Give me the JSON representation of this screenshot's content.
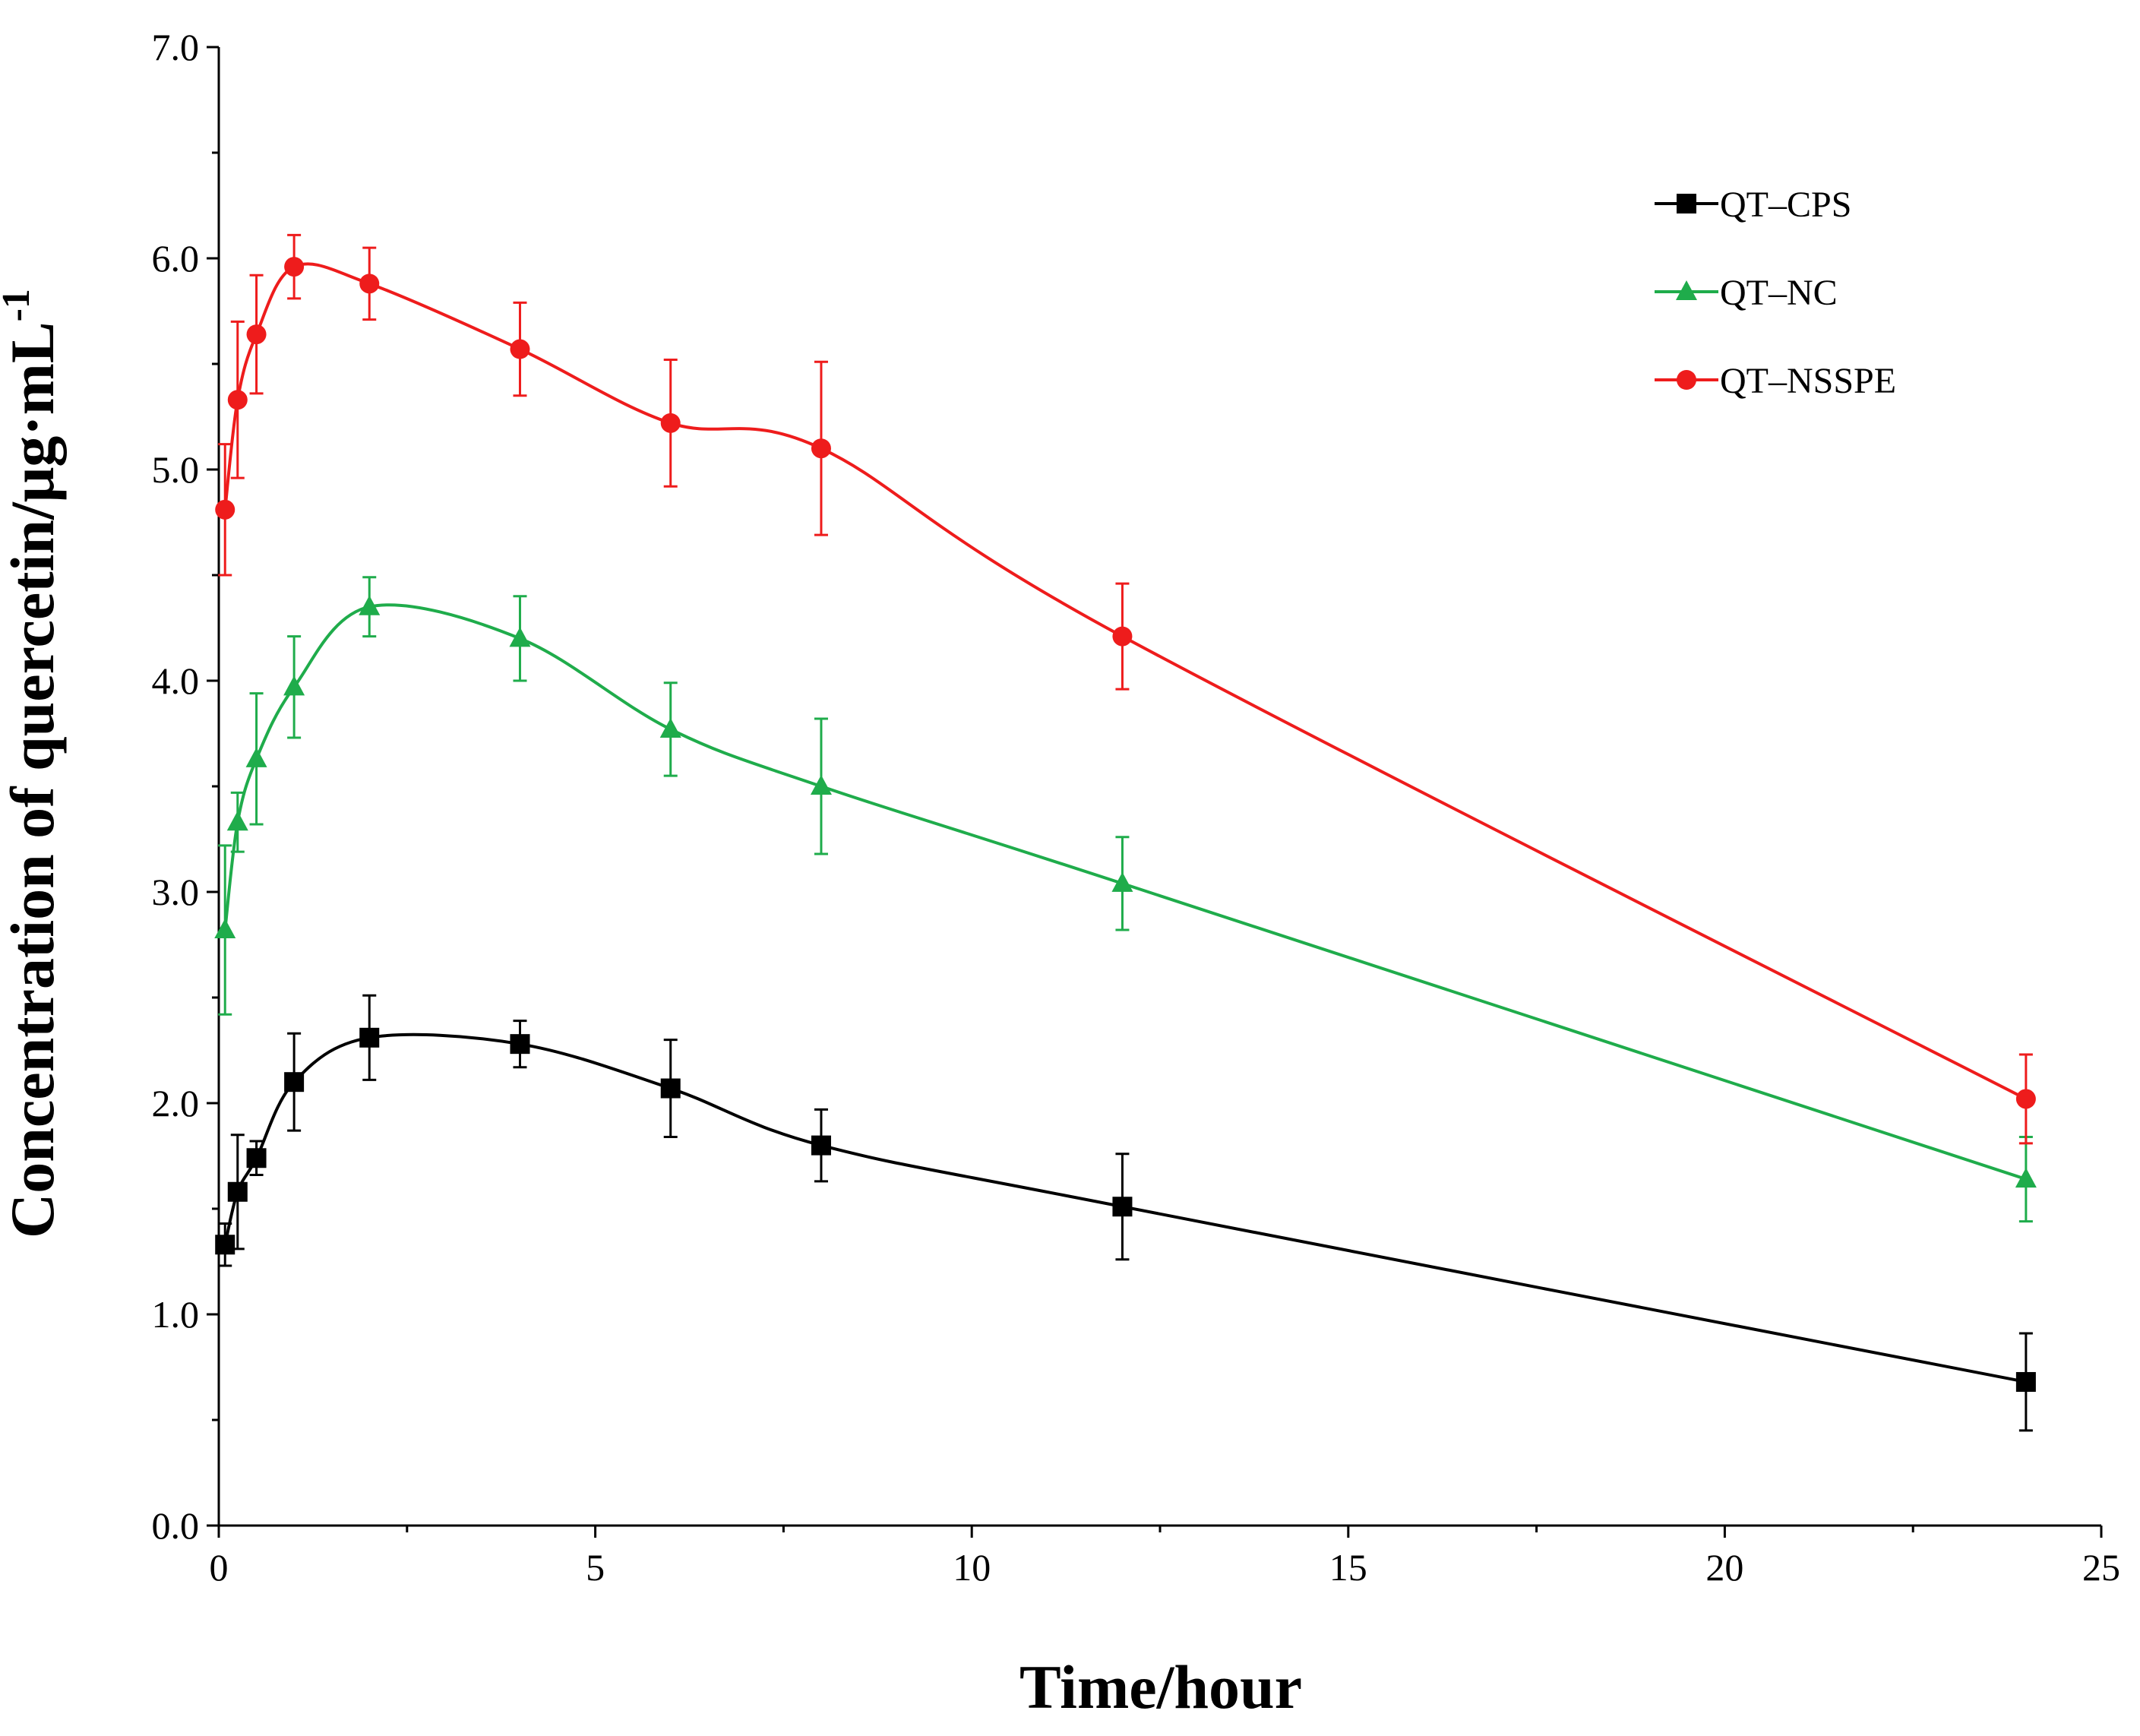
{
  "chart_data": {
    "type": "line",
    "title": "",
    "xlabel": "Time/hour",
    "ylabel": "Concentration of quercetin/μg·mL",
    "ylabel_superscript": "-1",
    "xlim": [
      0,
      25
    ],
    "ylim": [
      0,
      7
    ],
    "x_ticks": [
      0,
      5,
      10,
      15,
      20,
      25
    ],
    "x_tick_labels": [
      "0",
      "5",
      "10",
      "15",
      "20",
      "25"
    ],
    "y_ticks": [
      0,
      1,
      2,
      3,
      4,
      5,
      6,
      7
    ],
    "y_tick_labels": [
      "0.0",
      "1.0",
      "2.0",
      "3.0",
      "4.0",
      "5.0",
      "6.0",
      "7.0"
    ],
    "grid": false,
    "legend_position": "top-right",
    "x": [
      0.083,
      0.25,
      0.5,
      1,
      2,
      4,
      6,
      8,
      12,
      24
    ],
    "series": [
      {
        "name": "QT–CPS",
        "color": "#000000",
        "marker": "square",
        "values": [
          1.33,
          1.58,
          1.74,
          2.1,
          2.31,
          2.28,
          2.07,
          1.8,
          1.51,
          0.68
        ],
        "errors": [
          0.1,
          0.27,
          0.08,
          0.23,
          0.2,
          0.11,
          0.23,
          0.17,
          0.25,
          0.23
        ]
      },
      {
        "name": "QT–NC",
        "color": "#1fac4b",
        "marker": "triangle",
        "values": [
          2.82,
          3.33,
          3.63,
          3.97,
          4.35,
          4.2,
          3.77,
          3.5,
          3.04,
          1.64
        ],
        "errors": [
          0.4,
          0.14,
          0.31,
          0.24,
          0.14,
          0.2,
          0.22,
          0.32,
          0.22,
          0.2
        ]
      },
      {
        "name": "QT–NSSPE",
        "color": "#ee1c1c",
        "marker": "circle",
        "values": [
          4.81,
          5.33,
          5.64,
          5.96,
          5.88,
          5.57,
          5.22,
          5.1,
          4.21,
          2.02
        ],
        "errors": [
          0.31,
          0.37,
          0.28,
          0.15,
          0.17,
          0.22,
          0.3,
          0.41,
          0.25,
          0.21
        ]
      }
    ]
  }
}
